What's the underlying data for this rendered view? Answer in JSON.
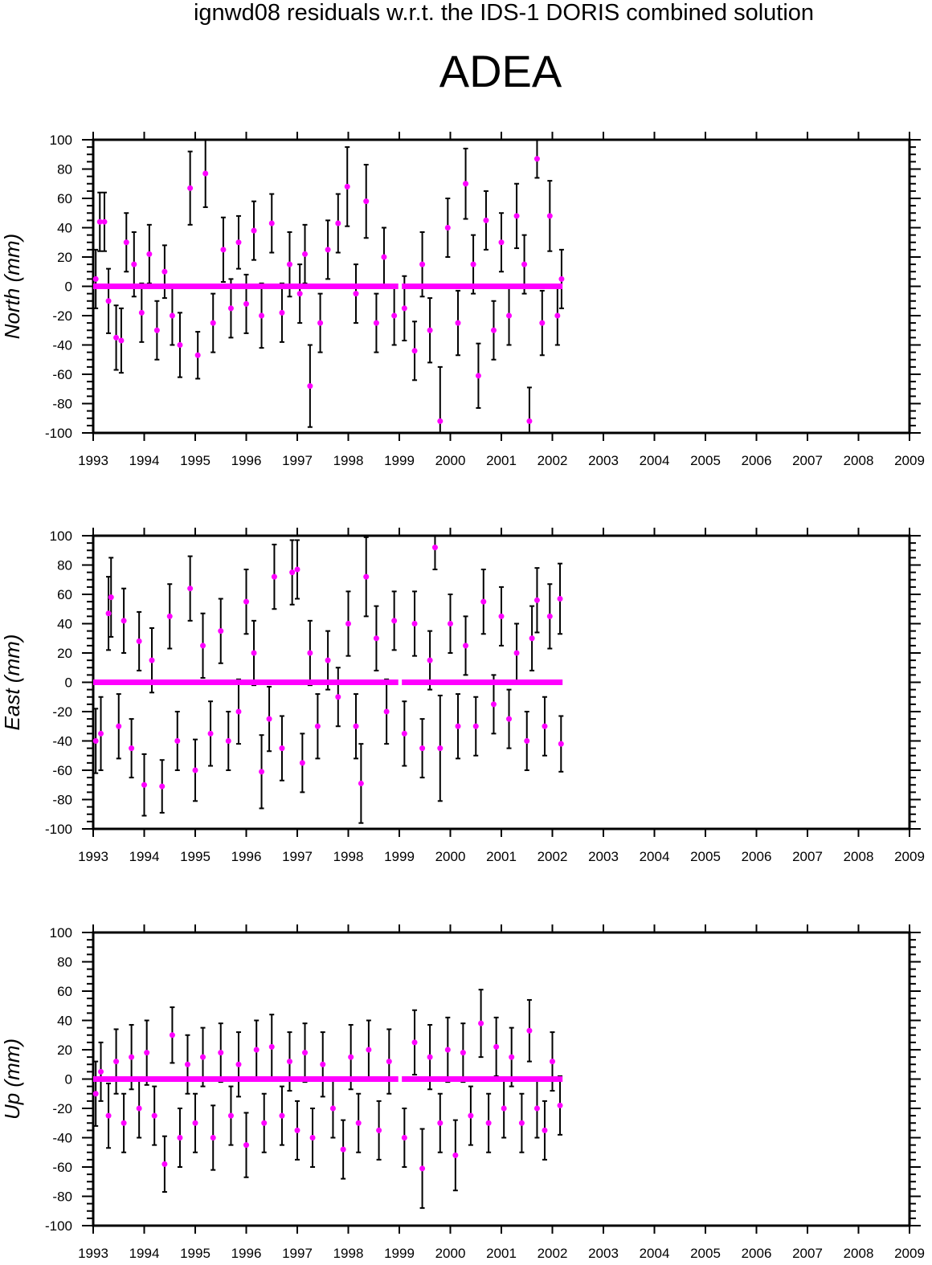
{
  "title": "ignwd08 residuals w.r.t. the IDS-1 DORIS combined solution",
  "station": "ADEA",
  "colors": {
    "point": "#ff00ff",
    "errorbar": "#000000",
    "axis": "#000000"
  },
  "chart_data": [
    {
      "type": "scatter",
      "ylabel": "North (mm)",
      "xlim": [
        1993,
        2009
      ],
      "ylim": [
        -100,
        100
      ],
      "xticks": [
        "1993",
        "1994",
        "1995",
        "1996",
        "1997",
        "1998",
        "1999",
        "2000",
        "2001",
        "2002",
        "2003",
        "2004",
        "2005",
        "2006",
        "2007",
        "2008",
        "2009"
      ],
      "yticks": [
        "100",
        "80",
        "60",
        "40",
        "20",
        "0",
        "-20",
        "-40",
        "-60",
        "-80",
        "-100"
      ],
      "grid": false,
      "zero_line_spans": [
        [
          1993,
          1998.98
        ],
        [
          1999.05,
          2002.2
        ]
      ],
      "points": [
        [
          1993.05,
          5,
          20
        ],
        [
          1993.13,
          44,
          20
        ],
        [
          1993.22,
          44,
          20
        ],
        [
          1993.3,
          -10,
          22
        ],
        [
          1993.45,
          -35,
          22
        ],
        [
          1993.55,
          -37,
          22
        ],
        [
          1993.65,
          30,
          20
        ],
        [
          1993.8,
          15,
          22
        ],
        [
          1993.95,
          -18,
          20
        ],
        [
          1994.1,
          22,
          20
        ],
        [
          1994.25,
          -30,
          20
        ],
        [
          1994.4,
          10,
          18
        ],
        [
          1994.55,
          -20,
          20
        ],
        [
          1994.7,
          -40,
          22
        ],
        [
          1994.9,
          67,
          25
        ],
        [
          1995.05,
          -47,
          16
        ],
        [
          1995.2,
          77,
          23
        ],
        [
          1995.35,
          -25,
          20
        ],
        [
          1995.55,
          25,
          22
        ],
        [
          1995.7,
          -15,
          20
        ],
        [
          1995.85,
          30,
          18
        ],
        [
          1996.0,
          -12,
          20
        ],
        [
          1996.15,
          38,
          20
        ],
        [
          1996.3,
          -20,
          22
        ],
        [
          1996.5,
          43,
          20
        ],
        [
          1996.7,
          -18,
          20
        ],
        [
          1996.85,
          15,
          22
        ],
        [
          1997.05,
          -5,
          20
        ],
        [
          1997.15,
          22,
          20
        ],
        [
          1997.25,
          -68,
          28
        ],
        [
          1997.45,
          -25,
          20
        ],
        [
          1997.6,
          25,
          20
        ],
        [
          1997.8,
          43,
          20
        ],
        [
          1997.98,
          68,
          27
        ],
        [
          1998.15,
          -5,
          20
        ],
        [
          1998.35,
          58,
          25
        ],
        [
          1998.55,
          -25,
          20
        ],
        [
          1998.7,
          20,
          20
        ],
        [
          1998.9,
          -20,
          20
        ],
        [
          1999.1,
          -15,
          22
        ],
        [
          1999.3,
          -44,
          20
        ],
        [
          1999.45,
          15,
          22
        ],
        [
          1999.6,
          -30,
          22
        ],
        [
          1999.8,
          -92,
          37
        ],
        [
          1999.95,
          40,
          20
        ],
        [
          2000.15,
          -25,
          22
        ],
        [
          2000.3,
          70,
          24
        ],
        [
          2000.45,
          15,
          20
        ],
        [
          2000.55,
          -61,
          22
        ],
        [
          2000.7,
          45,
          20
        ],
        [
          2000.85,
          -30,
          20
        ],
        [
          2001.0,
          30,
          20
        ],
        [
          2001.15,
          -20,
          20
        ],
        [
          2001.3,
          48,
          22
        ],
        [
          2001.45,
          15,
          20
        ],
        [
          2001.55,
          -92,
          23
        ],
        [
          2001.7,
          87,
          13
        ],
        [
          2001.8,
          -25,
          22
        ],
        [
          2001.95,
          48,
          24
        ],
        [
          2002.1,
          -20,
          20
        ],
        [
          2002.18,
          5,
          20
        ]
      ]
    },
    {
      "type": "scatter",
      "ylabel": "East (mm)",
      "xlim": [
        1993,
        2009
      ],
      "ylim": [
        -100,
        100
      ],
      "xticks": [
        "1993",
        "1994",
        "1995",
        "1996",
        "1997",
        "1998",
        "1999",
        "2000",
        "2001",
        "2002",
        "2003",
        "2004",
        "2005",
        "2006",
        "2007",
        "2008",
        "2009"
      ],
      "yticks": [
        "100",
        "80",
        "60",
        "40",
        "20",
        "0",
        "-20",
        "-40",
        "-60",
        "-80",
        "-100"
      ],
      "grid": false,
      "zero_line_spans": [
        [
          1993,
          1998.98
        ],
        [
          1999.05,
          2002.2
        ]
      ],
      "points": [
        [
          1993.05,
          -40,
          22
        ],
        [
          1993.15,
          -35,
          25
        ],
        [
          1993.3,
          47,
          25
        ],
        [
          1993.35,
          58,
          27
        ],
        [
          1993.5,
          -30,
          22
        ],
        [
          1993.6,
          42,
          22
        ],
        [
          1993.75,
          -45,
          20
        ],
        [
          1993.9,
          28,
          20
        ],
        [
          1994.0,
          -70,
          21
        ],
        [
          1994.15,
          15,
          22
        ],
        [
          1994.35,
          -71,
          18
        ],
        [
          1994.5,
          45,
          22
        ],
        [
          1994.65,
          -40,
          20
        ],
        [
          1994.9,
          64,
          22
        ],
        [
          1995.0,
          -60,
          21
        ],
        [
          1995.15,
          25,
          22
        ],
        [
          1995.3,
          -35,
          22
        ],
        [
          1995.5,
          35,
          22
        ],
        [
          1995.65,
          -40,
          20
        ],
        [
          1995.85,
          -20,
          22
        ],
        [
          1996.0,
          55,
          22
        ],
        [
          1996.15,
          20,
          22
        ],
        [
          1996.3,
          -61,
          25
        ],
        [
          1996.45,
          -25,
          22
        ],
        [
          1996.55,
          72,
          22
        ],
        [
          1996.7,
          -45,
          22
        ],
        [
          1996.9,
          75,
          22
        ],
        [
          1997.0,
          77,
          20
        ],
        [
          1997.1,
          -55,
          20
        ],
        [
          1997.25,
          20,
          22
        ],
        [
          1997.4,
          -30,
          22
        ],
        [
          1997.6,
          15,
          20
        ],
        [
          1997.8,
          -10,
          20
        ],
        [
          1998.0,
          40,
          22
        ],
        [
          1998.15,
          -30,
          22
        ],
        [
          1998.25,
          -69,
          27
        ],
        [
          1998.35,
          72,
          27
        ],
        [
          1998.55,
          30,
          22
        ],
        [
          1998.75,
          -20,
          22
        ],
        [
          1998.9,
          42,
          20
        ],
        [
          1999.1,
          -35,
          22
        ],
        [
          1999.3,
          40,
          22
        ],
        [
          1999.45,
          -45,
          20
        ],
        [
          1999.6,
          15,
          20
        ],
        [
          1999.7,
          92,
          15
        ],
        [
          1999.8,
          -45,
          36
        ],
        [
          2000.0,
          40,
          20
        ],
        [
          2000.15,
          -30,
          22
        ],
        [
          2000.3,
          25,
          20
        ],
        [
          2000.5,
          -30,
          20
        ],
        [
          2000.65,
          55,
          22
        ],
        [
          2000.85,
          -15,
          20
        ],
        [
          2001.0,
          45,
          20
        ],
        [
          2001.15,
          -25,
          20
        ],
        [
          2001.3,
          20,
          20
        ],
        [
          2001.5,
          -40,
          20
        ],
        [
          2001.6,
          30,
          22
        ],
        [
          2001.7,
          56,
          22
        ],
        [
          2001.85,
          -30,
          20
        ],
        [
          2001.95,
          45,
          22
        ],
        [
          2002.15,
          57,
          24
        ],
        [
          2002.17,
          -42,
          19
        ]
      ]
    },
    {
      "type": "scatter",
      "ylabel": "Up (mm)",
      "xlim": [
        1993,
        2009
      ],
      "ylim": [
        -100,
        100
      ],
      "xticks": [
        "1993",
        "1994",
        "1995",
        "1996",
        "1997",
        "1998",
        "1999",
        "2000",
        "2001",
        "2002",
        "2003",
        "2004",
        "2005",
        "2006",
        "2007",
        "2008",
        "2009"
      ],
      "yticks": [
        "100",
        "80",
        "60",
        "40",
        "20",
        "0",
        "-20",
        "-40",
        "-60",
        "-80",
        "-100"
      ],
      "grid": false,
      "zero_line_spans": [
        [
          1993,
          1998.98
        ],
        [
          1999.05,
          2002.2
        ]
      ],
      "points": [
        [
          1993.05,
          -10,
          22
        ],
        [
          1993.15,
          5,
          20
        ],
        [
          1993.3,
          -25,
          22
        ],
        [
          1993.45,
          12,
          22
        ],
        [
          1993.6,
          -30,
          20
        ],
        [
          1993.75,
          15,
          22
        ],
        [
          1993.9,
          -20,
          20
        ],
        [
          1994.05,
          18,
          22
        ],
        [
          1994.2,
          -25,
          20
        ],
        [
          1994.4,
          -58,
          19
        ],
        [
          1994.55,
          30,
          19
        ],
        [
          1994.7,
          -40,
          20
        ],
        [
          1994.85,
          10,
          20
        ],
        [
          1995.0,
          -30,
          20
        ],
        [
          1995.15,
          15,
          20
        ],
        [
          1995.35,
          -40,
          22
        ],
        [
          1995.5,
          18,
          20
        ],
        [
          1995.7,
          -25,
          20
        ],
        [
          1995.85,
          10,
          22
        ],
        [
          1996.0,
          -45,
          22
        ],
        [
          1996.2,
          20,
          20
        ],
        [
          1996.35,
          -30,
          20
        ],
        [
          1996.5,
          22,
          22
        ],
        [
          1996.7,
          -25,
          20
        ],
        [
          1996.85,
          12,
          20
        ],
        [
          1997.0,
          -35,
          20
        ],
        [
          1997.15,
          18,
          20
        ],
        [
          1997.3,
          -40,
          20
        ],
        [
          1997.5,
          10,
          22
        ],
        [
          1997.7,
          -20,
          20
        ],
        [
          1997.9,
          -48,
          20
        ],
        [
          1998.05,
          15,
          22
        ],
        [
          1998.2,
          -30,
          20
        ],
        [
          1998.4,
          20,
          20
        ],
        [
          1998.6,
          -35,
          20
        ],
        [
          1998.8,
          12,
          22
        ],
        [
          1999.1,
          -40,
          20
        ],
        [
          1999.3,
          25,
          22
        ],
        [
          1999.45,
          -61,
          27
        ],
        [
          1999.6,
          15,
          22
        ],
        [
          1999.8,
          -30,
          20
        ],
        [
          1999.95,
          20,
          22
        ],
        [
          2000.1,
          -52,
          24
        ],
        [
          2000.25,
          18,
          20
        ],
        [
          2000.4,
          -25,
          20
        ],
        [
          2000.6,
          38,
          23
        ],
        [
          2000.75,
          -30,
          20
        ],
        [
          2000.9,
          22,
          20
        ],
        [
          2001.05,
          -20,
          20
        ],
        [
          2001.2,
          15,
          20
        ],
        [
          2001.4,
          -30,
          20
        ],
        [
          2001.55,
          33,
          21
        ],
        [
          2001.7,
          -20,
          20
        ],
        [
          2001.85,
          -35,
          20
        ],
        [
          2002.0,
          12,
          20
        ],
        [
          2002.15,
          -18,
          20
        ]
      ]
    }
  ]
}
